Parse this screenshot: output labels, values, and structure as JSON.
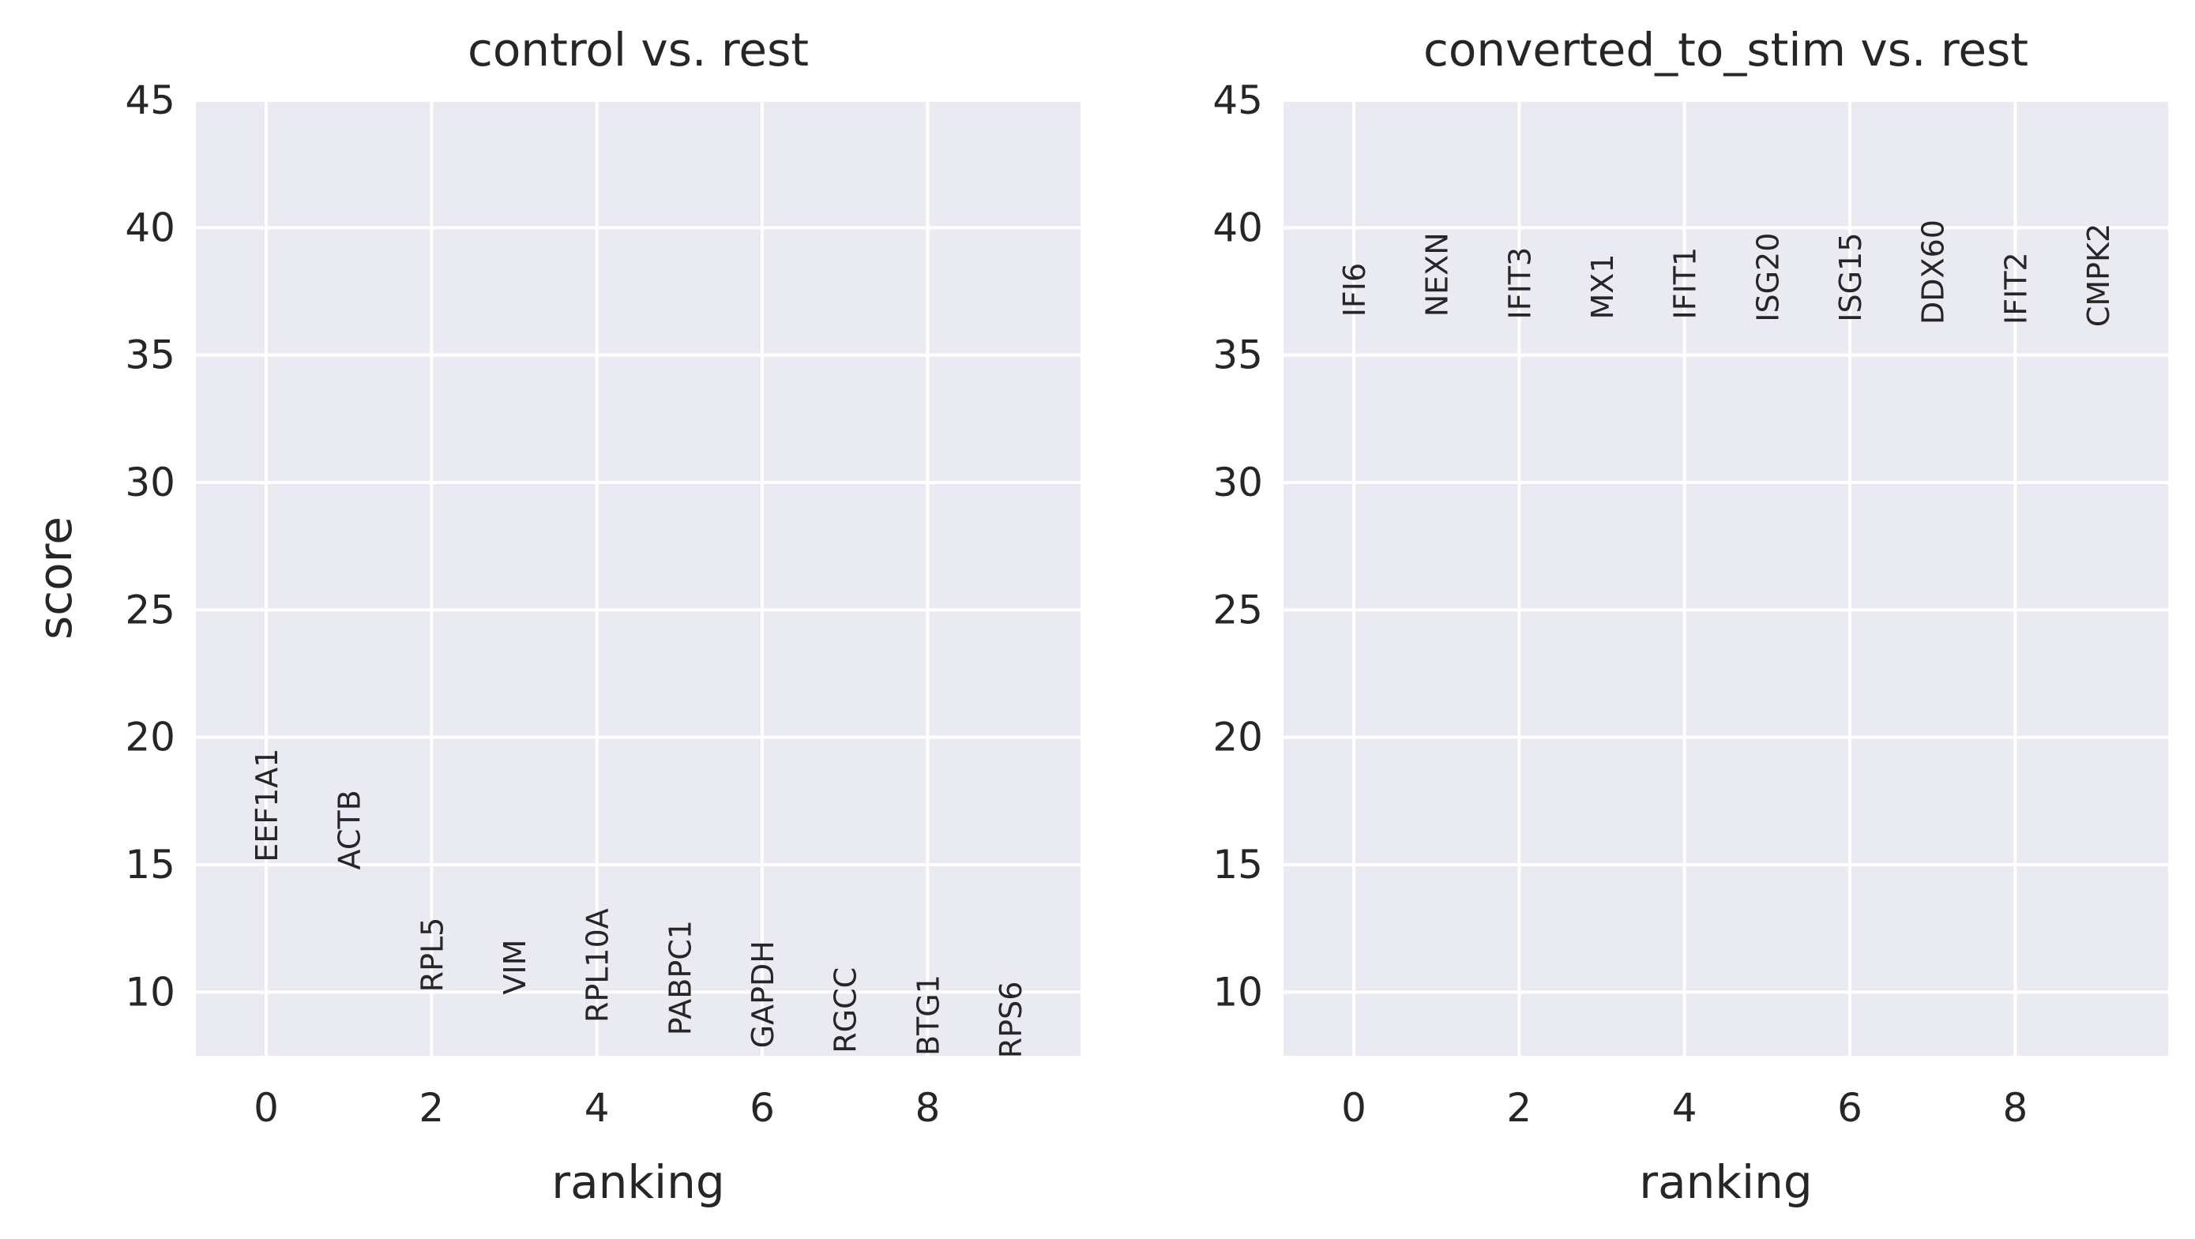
{
  "chart_data": [
    {
      "type": "scatter",
      "title": "control vs. rest",
      "xlabel": "ranking",
      "ylabel": "score",
      "xlim": [
        -0.85,
        9.85
      ],
      "ylim": [
        7.5,
        45
      ],
      "xticks": [
        "0",
        "2",
        "4",
        "6",
        "8"
      ],
      "yticks": [
        "10",
        "15",
        "20",
        "25",
        "30",
        "35",
        "40",
        "45"
      ],
      "grid": true,
      "points": [
        {
          "x": 0,
          "y": 15.1,
          "label": "EEF1A1"
        },
        {
          "x": 1,
          "y": 14.8,
          "label": "ACTB"
        },
        {
          "x": 2,
          "y": 10.0,
          "label": "RPL5"
        },
        {
          "x": 3,
          "y": 9.9,
          "label": "VIM"
        },
        {
          "x": 4,
          "y": 8.8,
          "label": "RPL10A"
        },
        {
          "x": 5,
          "y": 8.3,
          "label": "PABPC1"
        },
        {
          "x": 6,
          "y": 7.8,
          "label": "GAPDH"
        },
        {
          "x": 7,
          "y": 7.6,
          "label": "RGCC"
        },
        {
          "x": 8,
          "y": 7.5,
          "label": "BTG1"
        },
        {
          "x": 9,
          "y": 7.4,
          "label": "RPS6"
        }
      ]
    },
    {
      "type": "scatter",
      "title": "converted_to_stim vs. rest",
      "xlabel": "ranking",
      "ylabel": "",
      "xlim": [
        -0.85,
        9.85
      ],
      "ylim": [
        7.5,
        45
      ],
      "xticks": [
        "0",
        "2",
        "4",
        "6",
        "8"
      ],
      "yticks": [
        "10",
        "15",
        "20",
        "25",
        "30",
        "35",
        "40",
        "45"
      ],
      "grid": true,
      "points": [
        {
          "x": 0,
          "y": 36.5,
          "label": "IFI6"
        },
        {
          "x": 1,
          "y": 36.5,
          "label": "NEXN"
        },
        {
          "x": 2,
          "y": 36.4,
          "label": "IFIT3"
        },
        {
          "x": 3,
          "y": 36.4,
          "label": "MX1"
        },
        {
          "x": 4,
          "y": 36.4,
          "label": "IFIT1"
        },
        {
          "x": 5,
          "y": 36.3,
          "label": "ISG20"
        },
        {
          "x": 6,
          "y": 36.3,
          "label": "ISG15"
        },
        {
          "x": 7,
          "y": 36.2,
          "label": "DDX60"
        },
        {
          "x": 8,
          "y": 36.2,
          "label": "IFIT2"
        },
        {
          "x": 9,
          "y": 36.1,
          "label": "CMPK2"
        }
      ]
    }
  ]
}
